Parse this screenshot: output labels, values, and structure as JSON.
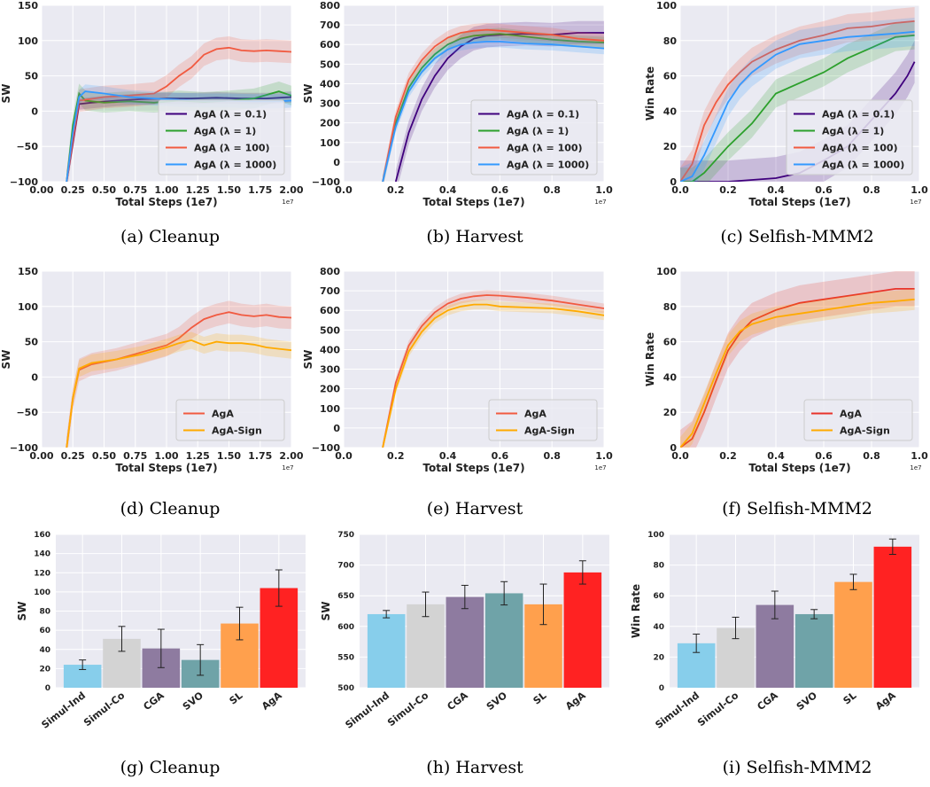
{
  "chart_data": [
    {
      "id": "a",
      "type": "line",
      "caption": "(a) Cleanup",
      "xlabel": "Total Steps (1e7)",
      "ylabel": "SW",
      "x_exponent": "1e7",
      "xlim": [
        0,
        2.0
      ],
      "ylim": [
        -100,
        150
      ],
      "xticks": [
        "0.00",
        "0.25",
        "0.50",
        "0.75",
        "1.00",
        "1.25",
        "1.50",
        "1.75",
        "2.00"
      ],
      "yticks": [
        "−100",
        "−50",
        "0",
        "50",
        "100",
        "150"
      ],
      "legend_position": "lower-right",
      "grid": true,
      "series": [
        {
          "name": "AgA (λ = 0.1)",
          "color": "#3f007d",
          "x": [
            0.2,
            0.25,
            0.3,
            0.4,
            0.6,
            0.8,
            1.0,
            1.2,
            1.4,
            1.6,
            1.8,
            2.0
          ],
          "y": [
            -100,
            -45,
            10,
            12,
            15,
            17,
            18,
            18,
            19,
            18,
            18,
            20
          ],
          "band": 8
        },
        {
          "name": "AgA (λ = 1)",
          "color": "#2ca02c",
          "x": [
            0.2,
            0.25,
            0.3,
            0.35,
            0.5,
            0.7,
            0.9,
            1.1,
            1.3,
            1.5,
            1.7,
            1.9,
            2.0
          ],
          "y": [
            -100,
            -20,
            25,
            15,
            12,
            14,
            12,
            15,
            13,
            15,
            18,
            28,
            22
          ],
          "band": 14
        },
        {
          "name": "AgA (λ = 100)",
          "color": "#f15a40",
          "x": [
            0.2,
            0.25,
            0.3,
            0.5,
            0.7,
            0.9,
            1.0,
            1.1,
            1.2,
            1.3,
            1.4,
            1.5,
            1.6,
            1.7,
            1.8,
            1.9,
            2.0
          ],
          "y": [
            -100,
            -40,
            15,
            20,
            22,
            25,
            35,
            50,
            62,
            80,
            88,
            90,
            86,
            85,
            86,
            85,
            84
          ],
          "band": 16
        },
        {
          "name": "AgA (λ = 1000)",
          "color": "#3399ff",
          "x": [
            0.2,
            0.25,
            0.3,
            0.35,
            0.5,
            0.7,
            0.9,
            1.1,
            1.3,
            1.5,
            1.7,
            1.9,
            2.0
          ],
          "y": [
            -100,
            -30,
            20,
            28,
            25,
            20,
            18,
            16,
            15,
            15,
            14,
            14,
            15
          ],
          "band": 10
        }
      ]
    },
    {
      "id": "b",
      "type": "line",
      "caption": "(b) Harvest",
      "xlabel": "Total Steps (1e7)",
      "ylabel": "SW",
      "x_exponent": "1e7",
      "xlim": [
        0,
        1.0
      ],
      "ylim": [
        -100,
        800
      ],
      "xticks": [
        "0.0",
        "0.2",
        "0.4",
        "0.6",
        "0.8",
        "1.0"
      ],
      "yticks": [
        "−100",
        "0",
        "100",
        "200",
        "300",
        "400",
        "500",
        "600",
        "700",
        "800"
      ],
      "legend_position": "lower-right",
      "grid": true,
      "series": [
        {
          "name": "AgA (λ = 0.1)",
          "color": "#3f007d",
          "x": [
            0.2,
            0.25,
            0.3,
            0.35,
            0.4,
            0.45,
            0.5,
            0.55,
            0.6,
            0.7,
            0.8,
            0.9,
            1.0
          ],
          "y": [
            -100,
            150,
            320,
            440,
            530,
            590,
            630,
            645,
            650,
            655,
            650,
            660,
            660
          ],
          "band": 60
        },
        {
          "name": "AgA (λ = 1)",
          "color": "#2ca02c",
          "x": [
            0.15,
            0.2,
            0.25,
            0.3,
            0.35,
            0.4,
            0.45,
            0.5,
            0.55,
            0.6,
            0.7,
            0.8,
            0.9,
            1.0
          ],
          "y": [
            -100,
            200,
            380,
            480,
            550,
            600,
            630,
            645,
            650,
            655,
            640,
            625,
            615,
            610
          ],
          "band": 30
        },
        {
          "name": "AgA (λ = 100)",
          "color": "#f15a40",
          "x": [
            0.15,
            0.2,
            0.25,
            0.3,
            0.35,
            0.4,
            0.45,
            0.5,
            0.55,
            0.6,
            0.7,
            0.8,
            0.9,
            1.0
          ],
          "y": [
            -100,
            230,
            420,
            520,
            590,
            635,
            660,
            670,
            675,
            670,
            660,
            650,
            630,
            620
          ],
          "band": 35
        },
        {
          "name": "AgA (λ = 1000)",
          "color": "#3399ff",
          "x": [
            0.15,
            0.2,
            0.25,
            0.3,
            0.35,
            0.4,
            0.45,
            0.5,
            0.55,
            0.6,
            0.7,
            0.8,
            0.9,
            1.0
          ],
          "y": [
            -100,
            180,
            360,
            460,
            530,
            575,
            600,
            610,
            615,
            615,
            605,
            600,
            590,
            580
          ],
          "band": 30
        }
      ]
    },
    {
      "id": "c",
      "type": "line",
      "caption": "(c) Selfish-MMM2",
      "xlabel": "Total Steps (1e7)",
      "ylabel": "Win Rate",
      "x_exponent": "1e7",
      "xlim": [
        0,
        1.0
      ],
      "ylim": [
        0,
        100
      ],
      "xticks": [
        "0.0",
        "0.2",
        "0.4",
        "0.6",
        "0.8",
        "1.0"
      ],
      "yticks": [
        "0",
        "20",
        "40",
        "60",
        "80",
        "100"
      ],
      "legend_position": "lower-right",
      "grid": true,
      "series": [
        {
          "name": "AgA (λ = 0.1)",
          "color": "#3f007d",
          "x": [
            0.0,
            0.2,
            0.4,
            0.5,
            0.6,
            0.7,
            0.8,
            0.9,
            0.95,
            0.98
          ],
          "y": [
            0,
            0,
            2,
            5,
            12,
            20,
            35,
            50,
            60,
            68
          ],
          "band": 12
        },
        {
          "name": "AgA (λ = 1)",
          "color": "#2ca02c",
          "x": [
            0.0,
            0.05,
            0.1,
            0.2,
            0.3,
            0.4,
            0.5,
            0.6,
            0.7,
            0.8,
            0.9,
            0.98
          ],
          "y": [
            0,
            0,
            5,
            20,
            33,
            50,
            56,
            62,
            70,
            76,
            82,
            83
          ],
          "band": 8
        },
        {
          "name": "AgA (λ = 100)",
          "color": "#f15a40",
          "x": [
            0.0,
            0.05,
            0.1,
            0.15,
            0.2,
            0.25,
            0.3,
            0.4,
            0.5,
            0.6,
            0.7,
            0.8,
            0.9,
            0.98
          ],
          "y": [
            0,
            10,
            32,
            45,
            55,
            62,
            68,
            75,
            80,
            83,
            87,
            88,
            90,
            91
          ],
          "band": 8
        },
        {
          "name": "AgA (λ = 1000)",
          "color": "#3399ff",
          "x": [
            0.0,
            0.05,
            0.1,
            0.15,
            0.2,
            0.25,
            0.3,
            0.4,
            0.5,
            0.6,
            0.7,
            0.8,
            0.9,
            0.98
          ],
          "y": [
            0,
            3,
            15,
            30,
            45,
            55,
            62,
            72,
            78,
            80,
            82,
            83,
            84,
            85
          ],
          "band": 8
        }
      ]
    },
    {
      "id": "d",
      "type": "line",
      "caption": "(d) Cleanup",
      "xlabel": "Total Steps (1e7)",
      "ylabel": "SW",
      "x_exponent": "1e7",
      "xlim": [
        0,
        2.0
      ],
      "ylim": [
        -100,
        150
      ],
      "xticks": [
        "0.00",
        "0.25",
        "0.50",
        "0.75",
        "1.00",
        "1.25",
        "1.50",
        "1.75",
        "2.00"
      ],
      "yticks": [
        "−100",
        "−50",
        "0",
        "50",
        "100",
        "150"
      ],
      "legend_position": "lower-right",
      "grid": true,
      "series": [
        {
          "name": "AgA",
          "color": "#f15a40",
          "x": [
            0.2,
            0.25,
            0.3,
            0.4,
            0.6,
            0.8,
            1.0,
            1.1,
            1.2,
            1.3,
            1.4,
            1.5,
            1.6,
            1.7,
            1.8,
            1.9,
            2.0
          ],
          "y": [
            -100,
            -30,
            10,
            18,
            25,
            35,
            45,
            55,
            70,
            82,
            88,
            92,
            88,
            86,
            88,
            85,
            84
          ],
          "band": 16
        },
        {
          "name": "AgA-Sign",
          "color": "#ffaa00",
          "x": [
            0.2,
            0.25,
            0.3,
            0.4,
            0.6,
            0.8,
            1.0,
            1.1,
            1.2,
            1.3,
            1.4,
            1.5,
            1.6,
            1.7,
            1.8,
            1.9,
            2.0
          ],
          "y": [
            -100,
            -30,
            12,
            20,
            25,
            32,
            42,
            48,
            52,
            45,
            50,
            48,
            48,
            46,
            42,
            40,
            38
          ],
          "band": 12
        }
      ]
    },
    {
      "id": "e",
      "type": "line",
      "caption": "(e) Harvest",
      "xlabel": "Total Steps (1e7)",
      "ylabel": "SW",
      "x_exponent": "1e7",
      "xlim": [
        0,
        1.0
      ],
      "ylim": [
        -100,
        800
      ],
      "xticks": [
        "0.0",
        "0.2",
        "0.4",
        "0.6",
        "0.8",
        "1.0"
      ],
      "yticks": [
        "−100",
        "0",
        "100",
        "200",
        "300",
        "400",
        "500",
        "600",
        "700",
        "800"
      ],
      "legend_position": "lower-right",
      "grid": true,
      "series": [
        {
          "name": "AgA",
          "color": "#f15a40",
          "x": [
            0.15,
            0.2,
            0.25,
            0.3,
            0.35,
            0.4,
            0.45,
            0.5,
            0.55,
            0.6,
            0.7,
            0.8,
            0.9,
            1.0
          ],
          "y": [
            -100,
            230,
            420,
            520,
            590,
            635,
            660,
            672,
            678,
            675,
            665,
            650,
            630,
            610
          ],
          "band": 25
        },
        {
          "name": "AgA-Sign",
          "color": "#ffaa00",
          "x": [
            0.15,
            0.2,
            0.25,
            0.3,
            0.35,
            0.4,
            0.45,
            0.5,
            0.55,
            0.6,
            0.7,
            0.8,
            0.9,
            1.0
          ],
          "y": [
            -100,
            200,
            390,
            490,
            560,
            600,
            620,
            630,
            630,
            620,
            615,
            610,
            595,
            575
          ],
          "band": 25
        }
      ]
    },
    {
      "id": "f",
      "type": "line",
      "caption": "(f) Selfish-MMM2",
      "xlabel": "Total Steps (1e7)",
      "ylabel": "Win Rate",
      "x_exponent": "1e7",
      "xlim": [
        0,
        1.0
      ],
      "ylim": [
        0,
        100
      ],
      "xticks": [
        "0.0",
        "0.2",
        "0.4",
        "0.6",
        "0.8",
        "1.0"
      ],
      "yticks": [
        "0",
        "20",
        "40",
        "60",
        "80",
        "100"
      ],
      "legend_position": "lower-right",
      "grid": true,
      "series": [
        {
          "name": "AgA",
          "color": "#e8332a",
          "x": [
            0.0,
            0.05,
            0.1,
            0.15,
            0.2,
            0.25,
            0.3,
            0.4,
            0.5,
            0.6,
            0.7,
            0.8,
            0.9,
            0.98
          ],
          "y": [
            0,
            5,
            20,
            38,
            55,
            65,
            72,
            78,
            82,
            84,
            86,
            88,
            90,
            90
          ],
          "band": 10
        },
        {
          "name": "AgA-Sign",
          "color": "#ffaa00",
          "x": [
            0.0,
            0.05,
            0.1,
            0.15,
            0.2,
            0.25,
            0.3,
            0.4,
            0.5,
            0.6,
            0.7,
            0.8,
            0.9,
            0.98
          ],
          "y": [
            0,
            8,
            25,
            42,
            58,
            66,
            70,
            74,
            76,
            78,
            80,
            82,
            83,
            84
          ],
          "band": 6
        }
      ]
    },
    {
      "id": "g",
      "type": "bar",
      "caption": "(g) Cleanup",
      "ylabel": "SW",
      "ylim": [
        0,
        160
      ],
      "yticks": [
        "0",
        "20",
        "40",
        "60",
        "80",
        "100",
        "120",
        "140",
        "160"
      ],
      "categories": [
        "Simul-Ind",
        "Simul-Co",
        "CGA",
        "SVO",
        "SL",
        "AgA"
      ],
      "values": [
        24,
        51,
        41,
        29,
        67,
        104
      ],
      "errors": [
        5,
        13,
        20,
        16,
        17,
        19
      ],
      "colors": [
        "#87ceeb",
        "#d3d3d3",
        "#8e7ba0",
        "#6fa3a8",
        "#ffa04d",
        "#ff2222"
      ]
    },
    {
      "id": "h",
      "type": "bar",
      "caption": "(h) Harvest",
      "ylabel": "SW",
      "ylim": [
        500,
        750
      ],
      "yticks": [
        "500",
        "550",
        "600",
        "650",
        "700",
        "750"
      ],
      "categories": [
        "Simul-Ind",
        "Simul-Co",
        "CGA",
        "SVO",
        "SL",
        "AgA"
      ],
      "values": [
        620,
        636,
        648,
        654,
        636,
        688
      ],
      "errors": [
        6,
        20,
        19,
        19,
        33,
        19
      ],
      "colors": [
        "#87ceeb",
        "#d3d3d3",
        "#8e7ba0",
        "#6fa3a8",
        "#ffa04d",
        "#ff2222"
      ]
    },
    {
      "id": "i",
      "type": "bar",
      "caption": "(i) Selfish-MMM2",
      "ylabel": "Win Rate",
      "ylim": [
        0,
        100
      ],
      "yticks": [
        "0",
        "20",
        "40",
        "60",
        "80",
        "100"
      ],
      "categories": [
        "Simul-Ind",
        "Simul-Co",
        "CGA",
        "SVO",
        "SL",
        "AgA"
      ],
      "values": [
        29,
        39,
        54,
        48,
        69,
        92
      ],
      "errors": [
        6,
        7,
        9,
        3,
        5,
        5
      ],
      "colors": [
        "#87ceeb",
        "#d3d3d3",
        "#8e7ba0",
        "#6fa3a8",
        "#ffa04d",
        "#ff2222"
      ]
    }
  ]
}
